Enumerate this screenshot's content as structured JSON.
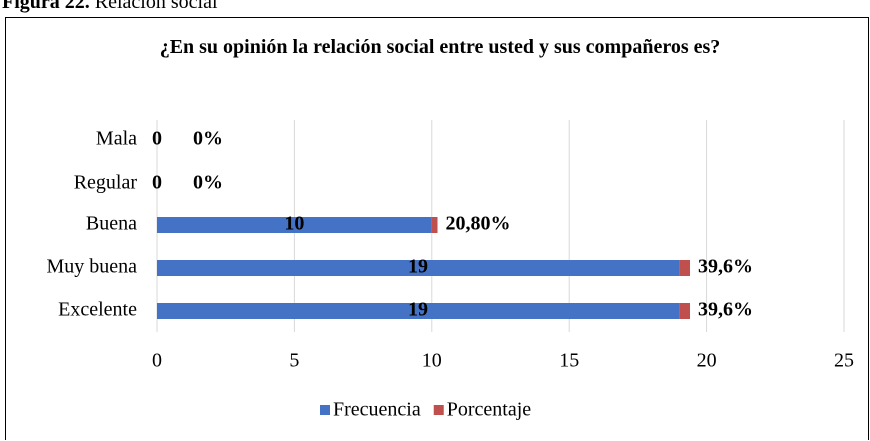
{
  "figure_label": "Figura 22.",
  "figure_caption": "Relación social",
  "chart_data": {
    "type": "stacked_barh",
    "title": "¿En su opinión la relación social entre usted y sus compañeros es?",
    "categories": [
      "Mala",
      "Regular",
      "Buena",
      "Muy buena",
      "Excelente"
    ],
    "series": [
      {
        "name": "Frecuencia",
        "color": "#4472c4",
        "values": [
          0,
          0,
          10,
          19,
          19
        ]
      },
      {
        "name": "Porcentaje",
        "color": "#c0504d",
        "values": [
          0,
          0,
          0.208,
          0.396,
          0.396
        ],
        "value_labels": [
          "0%",
          "0%",
          "20,80%",
          "39,6%",
          "39,6%"
        ]
      }
    ],
    "xlim": [
      0,
      25
    ],
    "xticks": [
      0,
      5,
      10,
      15,
      20,
      25
    ],
    "grid": true,
    "legend": "bottom"
  }
}
